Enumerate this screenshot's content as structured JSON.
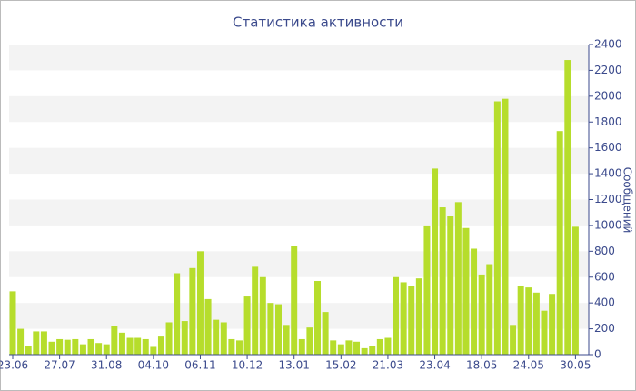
{
  "chart_data": {
    "type": "bar",
    "title": "Статистика активности",
    "y_label": "Сообщений",
    "categories": [
      "23.06",
      null,
      null,
      null,
      null,
      null,
      "27.07",
      null,
      null,
      null,
      null,
      null,
      "31.08",
      null,
      null,
      null,
      null,
      null,
      "04.10",
      null,
      null,
      null,
      null,
      null,
      "06.11",
      null,
      null,
      null,
      null,
      null,
      "10.12",
      null,
      null,
      null,
      null,
      null,
      "13.01",
      null,
      null,
      null,
      null,
      null,
      "15.02",
      null,
      null,
      null,
      null,
      null,
      "21.03",
      null,
      null,
      null,
      null,
      null,
      "23.04",
      null,
      null,
      null,
      null,
      null,
      "18.05",
      null,
      null,
      null,
      null,
      null,
      "24.05",
      null,
      null,
      null,
      null,
      null,
      "30.05"
    ],
    "values": [
      490,
      200,
      70,
      180,
      180,
      100,
      120,
      115,
      120,
      80,
      120,
      90,
      80,
      220,
      170,
      130,
      130,
      120,
      60,
      140,
      250,
      630,
      260,
      670,
      800,
      430,
      270,
      250,
      120,
      110,
      450,
      680,
      600,
      400,
      390,
      230,
      840,
      120,
      210,
      570,
      330,
      110,
      80,
      110,
      100,
      50,
      70,
      120,
      130,
      600,
      560,
      530,
      590,
      1000,
      1440,
      1140,
      1070,
      1180,
      980,
      820,
      620,
      700,
      1960,
      1980,
      230,
      530,
      520,
      480,
      340,
      470,
      1730,
      2280,
      990
    ],
    "color": "#b6dd2c",
    "ylim": [
      0,
      2400
    ],
    "yticks": [
      0,
      200,
      400,
      600,
      800,
      1000,
      1200,
      1400,
      1600,
      1800,
      2000,
      2200,
      2400
    ],
    "grid": true
  }
}
